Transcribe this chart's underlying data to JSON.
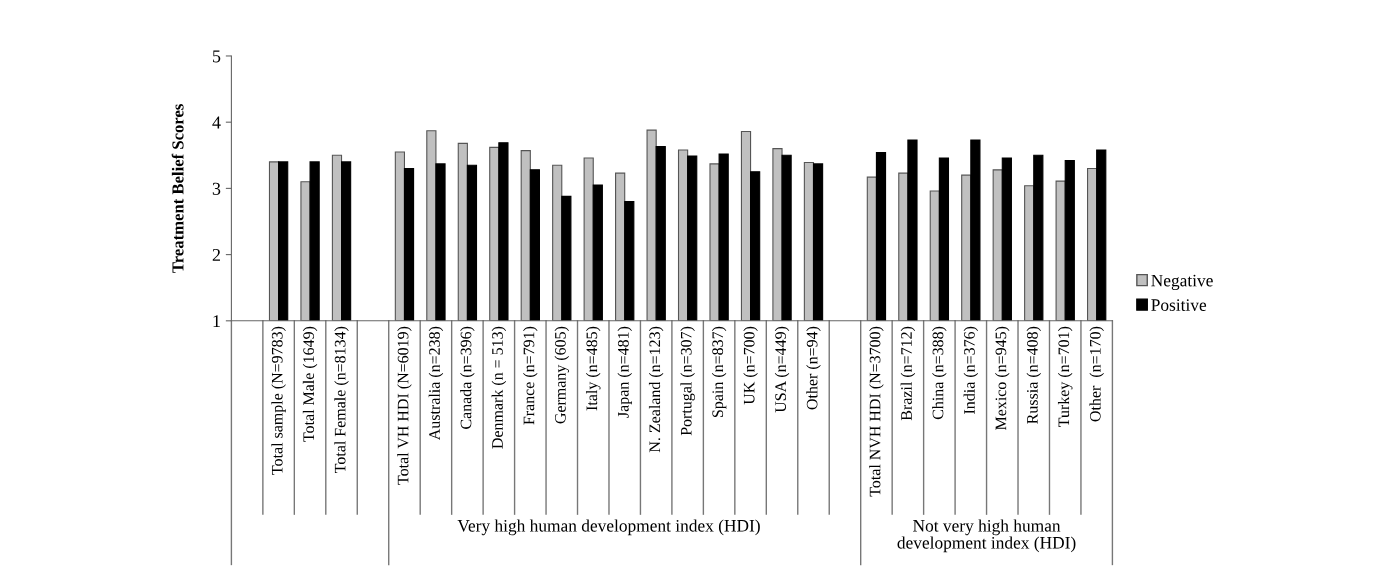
{
  "chart_data": {
    "type": "bar",
    "ylabel": "Treatment Belief Scores",
    "categories": [
      null,
      "Total sample (N=9783)",
      "Total Male (1649)",
      "Total Female (n=8134)",
      null,
      "Total VH HDI (N=6019)",
      "Australia (n=238)",
      "Canada (n=396)",
      "Denmark (n = 513)",
      "France (n=791)",
      "Germany (605)",
      "Italy (n=485)",
      "Japan (n=481)",
      "N. Zealand (n=123)",
      "Portugal (n=307)",
      "Spain (n=837)",
      "UK (n=700)",
      "USA (n=449)",
      "Other (n=94)",
      null,
      "Total NVH HDI (N=3700)",
      "Brazil (n=712)",
      "China (n=388)",
      "India (n=376)",
      "Mexico (n=945)",
      "Russia (n=408)",
      "Turkey (n=701)",
      "Other  (n=170)"
    ],
    "series": [
      {
        "name": "Negative",
        "color": "#c0c0c0",
        "values": [
          null,
          3.4,
          3.1,
          3.5,
          null,
          3.55,
          3.87,
          3.68,
          3.62,
          3.57,
          3.35,
          3.46,
          3.23,
          3.88,
          3.58,
          3.37,
          3.86,
          3.6,
          3.39,
          null,
          3.17,
          3.23,
          2.96,
          3.2,
          3.28,
          3.04,
          3.11,
          3.3
        ]
      },
      {
        "name": "Positive",
        "color": "#000000",
        "values": [
          null,
          3.4,
          3.4,
          3.4,
          null,
          3.3,
          3.37,
          3.35,
          3.69,
          3.28,
          2.88,
          3.05,
          2.8,
          3.63,
          3.49,
          3.52,
          3.25,
          3.5,
          3.37,
          null,
          3.54,
          3.73,
          3.46,
          3.73,
          3.46,
          3.5,
          3.42,
          3.58
        ]
      }
    ],
    "ylim": [
      1,
      5
    ],
    "yticks": [
      1,
      2,
      3,
      4,
      5
    ],
    "grid": false,
    "legend": "right",
    "annotations": [
      "Very high human development index (HDI)",
      "Not very high human\ndevelopment index (HDI)"
    ]
  }
}
